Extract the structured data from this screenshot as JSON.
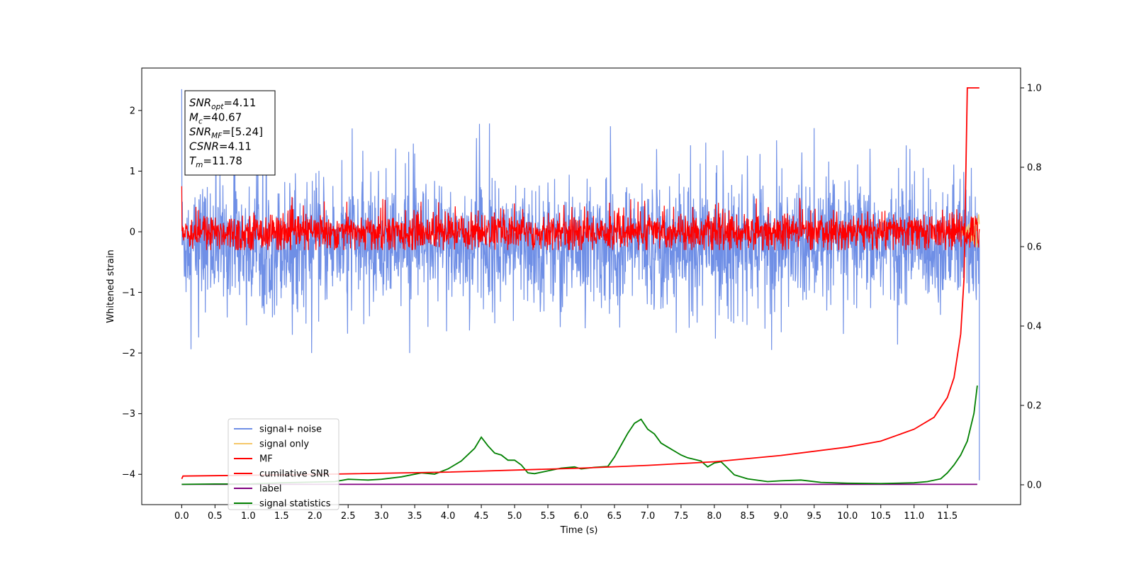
{
  "chart_data": {
    "type": "line",
    "xlabel": "Time (s)",
    "ylabel": "Whitened strain",
    "xlim": [
      -0.6,
      12.6
    ],
    "ylim": [
      -4.5,
      2.7
    ],
    "y2lim": [
      -0.05,
      1.05
    ],
    "xticks": [
      "0.0",
      "0.5",
      "1.0",
      "1.5",
      "2.0",
      "2.5",
      "3.0",
      "3.5",
      "4.0",
      "4.5",
      "5.0",
      "5.5",
      "6.0",
      "6.5",
      "7.0",
      "7.5",
      "8.0",
      "8.5",
      "9.0",
      "9.5",
      "10.0",
      "10.5",
      "11.0",
      "11.5"
    ],
    "yticks": [
      "2",
      "1",
      "0",
      "−1",
      "−2",
      "−3",
      "−4"
    ],
    "y2ticks": [
      "1.0",
      "0.8",
      "0.6",
      "0.4",
      "0.2",
      "0.0"
    ],
    "grid": false,
    "legend_position": "lower-left",
    "legend": [
      "signal+ noise",
      "signal only",
      "MF",
      "cumilative SNR",
      "label",
      "signal statistics"
    ],
    "colors": {
      "signal_noise": "#6f8fe6",
      "signal_only": "#f5c869",
      "mf": "#ff0000",
      "cumulative_snr": "#ff0000",
      "label": "#800080",
      "signal_statistics": "#008000"
    },
    "annotation": {
      "lines": [
        {
          "base": "SNR",
          "sub": "opt",
          "value": "=4.11"
        },
        {
          "base": "M",
          "sub": "c",
          "value": "=40.67"
        },
        {
          "base": "SNR",
          "sub": "MF",
          "value": "=[5.24]"
        },
        {
          "base": "CSNR",
          "sub": "",
          "value": "=4.11"
        },
        {
          "base": "T",
          "sub": "m",
          "value": "=11.78"
        }
      ]
    },
    "series": [
      {
        "name": "signal+ noise",
        "axis": "left",
        "style": "noise",
        "x_range": [
          0.0,
          11.98
        ],
        "mean": -0.2,
        "std": 0.5,
        "max": 2.35,
        "min": -2.0,
        "end_spike": -4.1
      },
      {
        "name": "signal only",
        "axis": "left",
        "style": "line",
        "x_range": [
          11.7,
          11.98
        ],
        "amplitude": 0.3
      },
      {
        "name": "MF",
        "axis": "left",
        "style": "noise",
        "x_range": [
          0.0,
          11.98
        ],
        "mean": 0.0,
        "std": 0.15,
        "max": 0.75,
        "min": -0.3
      },
      {
        "name": "cumilative SNR",
        "axis": "right",
        "x": [
          0.0,
          0.02,
          2.0,
          4.0,
          6.0,
          7.0,
          8.0,
          9.0,
          10.0,
          10.5,
          11.0,
          11.3,
          11.5,
          11.6,
          11.7,
          11.75,
          11.8,
          11.85,
          11.98
        ],
        "values": [
          0.015,
          0.022,
          0.026,
          0.032,
          0.042,
          0.049,
          0.058,
          0.074,
          0.095,
          0.11,
          0.14,
          0.17,
          0.22,
          0.27,
          0.38,
          0.52,
          1.0,
          1.0,
          1.0
        ]
      },
      {
        "name": "label",
        "axis": "right",
        "x": [
          0.0,
          11.95
        ],
        "values": [
          0.001,
          0.001
        ]
      },
      {
        "name": "signal statistics",
        "axis": "right",
        "x": [
          0.0,
          0.5,
          1.0,
          1.5,
          2.0,
          2.3,
          2.5,
          2.8,
          3.0,
          3.3,
          3.6,
          3.8,
          4.0,
          4.2,
          4.4,
          4.5,
          4.6,
          4.7,
          4.8,
          4.9,
          5.0,
          5.1,
          5.2,
          5.3,
          5.5,
          5.7,
          5.9,
          6.0,
          6.2,
          6.4,
          6.5,
          6.6,
          6.7,
          6.8,
          6.9,
          7.0,
          7.1,
          7.2,
          7.3,
          7.4,
          7.5,
          7.6,
          7.8,
          7.9,
          8.0,
          8.1,
          8.2,
          8.3,
          8.5,
          8.8,
          9.0,
          9.3,
          9.6,
          10.0,
          10.5,
          11.0,
          11.2,
          11.4,
          11.5,
          11.6,
          11.7,
          11.8,
          11.9,
          11.95
        ],
        "values": [
          0.001,
          0.002,
          0.002,
          0.005,
          0.007,
          0.008,
          0.014,
          0.012,
          0.014,
          0.02,
          0.03,
          0.027,
          0.04,
          0.06,
          0.092,
          0.12,
          0.098,
          0.08,
          0.075,
          0.062,
          0.062,
          0.05,
          0.03,
          0.028,
          0.035,
          0.042,
          0.045,
          0.04,
          0.044,
          0.046,
          0.07,
          0.1,
          0.13,
          0.155,
          0.165,
          0.14,
          0.128,
          0.105,
          0.095,
          0.085,
          0.075,
          0.068,
          0.06,
          0.045,
          0.055,
          0.058,
          0.042,
          0.025,
          0.015,
          0.008,
          0.01,
          0.012,
          0.006,
          0.004,
          0.003,
          0.005,
          0.008,
          0.015,
          0.03,
          0.05,
          0.075,
          0.11,
          0.18,
          0.25
        ]
      }
    ]
  }
}
